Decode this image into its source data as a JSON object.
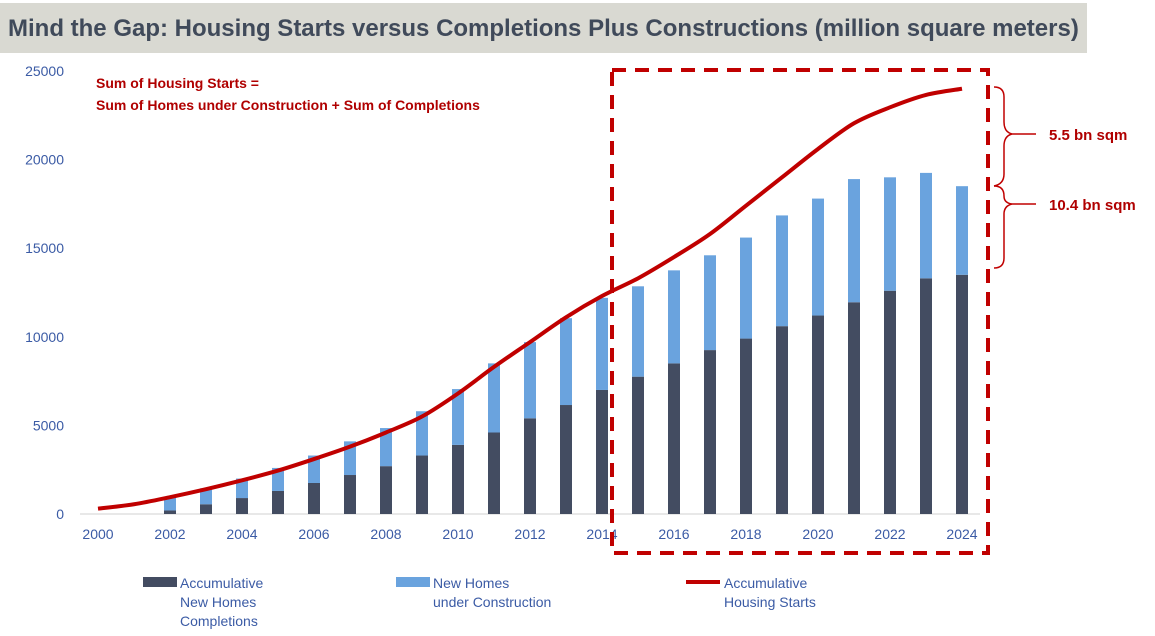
{
  "title": "Mind the Gap: Housing Starts versus Completions Plus Constructions (million square meters)",
  "annotation_lines": [
    "Sum of Housing Starts =",
    "Sum of Homes under Construction + Sum of Completions"
  ],
  "gap_labels": {
    "upper": "5.5 bn sqm",
    "lower": "10.4 bn sqm"
  },
  "colors": {
    "completions": "#434c61",
    "construction": "#6aa3de",
    "starts": "#c00000",
    "axis_text": "#3b5ba5",
    "annotation": "#b00000"
  },
  "legend": {
    "completions": [
      "Accumulative",
      "New Homes",
      "Completions"
    ],
    "construction": [
      "New Homes",
      "under Construction"
    ],
    "starts": [
      "Accumulative",
      "Housing Starts"
    ]
  },
  "chart_data": {
    "type": "bar",
    "title": "Mind the Gap: Housing Starts versus Completions Plus Constructions (million square meters)",
    "xlabel": "",
    "ylabel": "",
    "ylim": [
      0,
      25000
    ],
    "yticks": [
      "0",
      "5000",
      "10000",
      "15000",
      "20000",
      "25000"
    ],
    "xticks": [
      "2000",
      "2002",
      "2004",
      "2006",
      "2008",
      "2010",
      "2012",
      "2014",
      "2016",
      "2018",
      "2020",
      "2022",
      "2024"
    ],
    "categories": [
      "2000",
      "2001",
      "2002",
      "2003",
      "2004",
      "2005",
      "2006",
      "2007",
      "2008",
      "2009",
      "2010",
      "2011",
      "2012",
      "2013",
      "2014",
      "2015",
      "2016",
      "2017",
      "2018",
      "2019",
      "2020",
      "2021",
      "2022",
      "2023",
      "2024"
    ],
    "series": [
      {
        "name": "Accumulative New Homes Completions",
        "kind": "stacked-bar",
        "values": [
          0,
          0,
          200,
          550,
          900,
          1300,
          1750,
          2200,
          2700,
          3300,
          3900,
          4600,
          5400,
          6150,
          7000,
          7750,
          8500,
          9250,
          9900,
          10600,
          11200,
          11950,
          12600,
          13300,
          13500
        ]
      },
      {
        "name": "New Homes under Construction",
        "kind": "stacked-bar",
        "values": [
          0,
          0,
          750,
          900,
          1100,
          1300,
          1550,
          1900,
          2150,
          2500,
          3150,
          3900,
          4300,
          4900,
          5200,
          5100,
          5250,
          5350,
          5700,
          6250,
          6600,
          6950,
          6400,
          5950,
          5000
        ]
      },
      {
        "name": "Accumulative Housing Starts",
        "kind": "line",
        "values": [
          300,
          550,
          950,
          1400,
          1900,
          2450,
          3100,
          3800,
          4600,
          5500,
          6800,
          8300,
          9700,
          11100,
          12300,
          13300,
          14500,
          15800,
          17400,
          19000,
          20600,
          22050,
          22950,
          23650,
          24000
        ]
      }
    ],
    "highlight_range": [
      "2015",
      "2024"
    ],
    "legend_position": "bottom"
  }
}
